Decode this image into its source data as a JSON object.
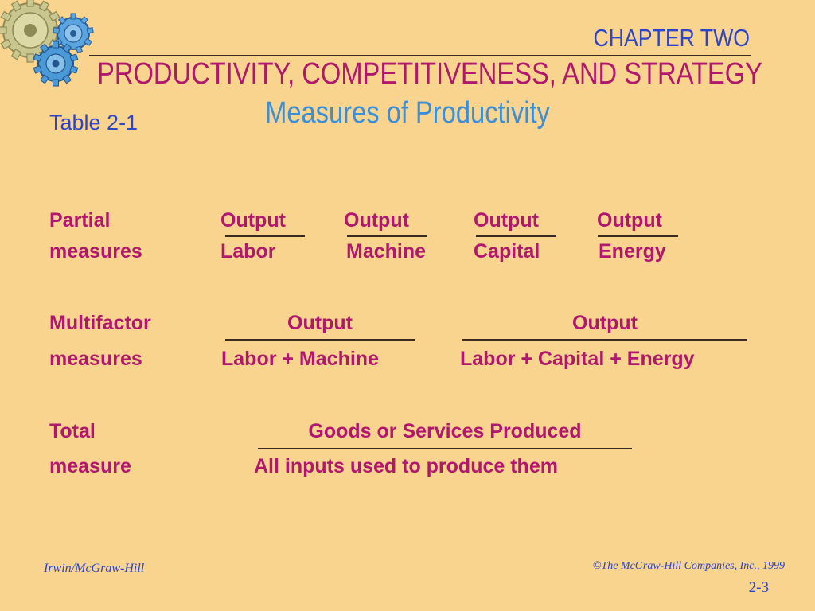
{
  "header": {
    "chapter": "CHAPTER TWO",
    "subtitle": "PRODUCTIVITY, COMPETITIVENESS, AND STRATEGY",
    "slide_title": "Measures of Productivity",
    "table_label": "Table 2-1"
  },
  "partial": {
    "label_line1": "Partial",
    "label_line2": "measures",
    "numerators": [
      "Output",
      "Output",
      "Output",
      "Output"
    ],
    "denominators": [
      "Labor",
      "Machine",
      "Capital",
      "Energy"
    ]
  },
  "multifactor": {
    "label_line1": "Multifactor",
    "label_line2": "measures",
    "numerators": [
      "Output",
      "Output"
    ],
    "denominators": [
      "Labor + Machine",
      "Labor + Capital + Energy"
    ]
  },
  "total": {
    "label_line1": "Total",
    "label_line2": "measure",
    "numerator": "Goods or Services Produced",
    "denominator": "All inputs used to produce them"
  },
  "footer": {
    "publisher": "Irwin/McGraw-Hill",
    "copyright": "©The McGraw-Hill Companies, Inc., 1999",
    "page": "2-3"
  },
  "colors": {
    "background": "#F9D48E",
    "heading_blue": "#2E45C8",
    "magenta_text": "#B0186E",
    "light_blue": "#3A8FD8"
  },
  "icons": [
    "gears-icon"
  ]
}
